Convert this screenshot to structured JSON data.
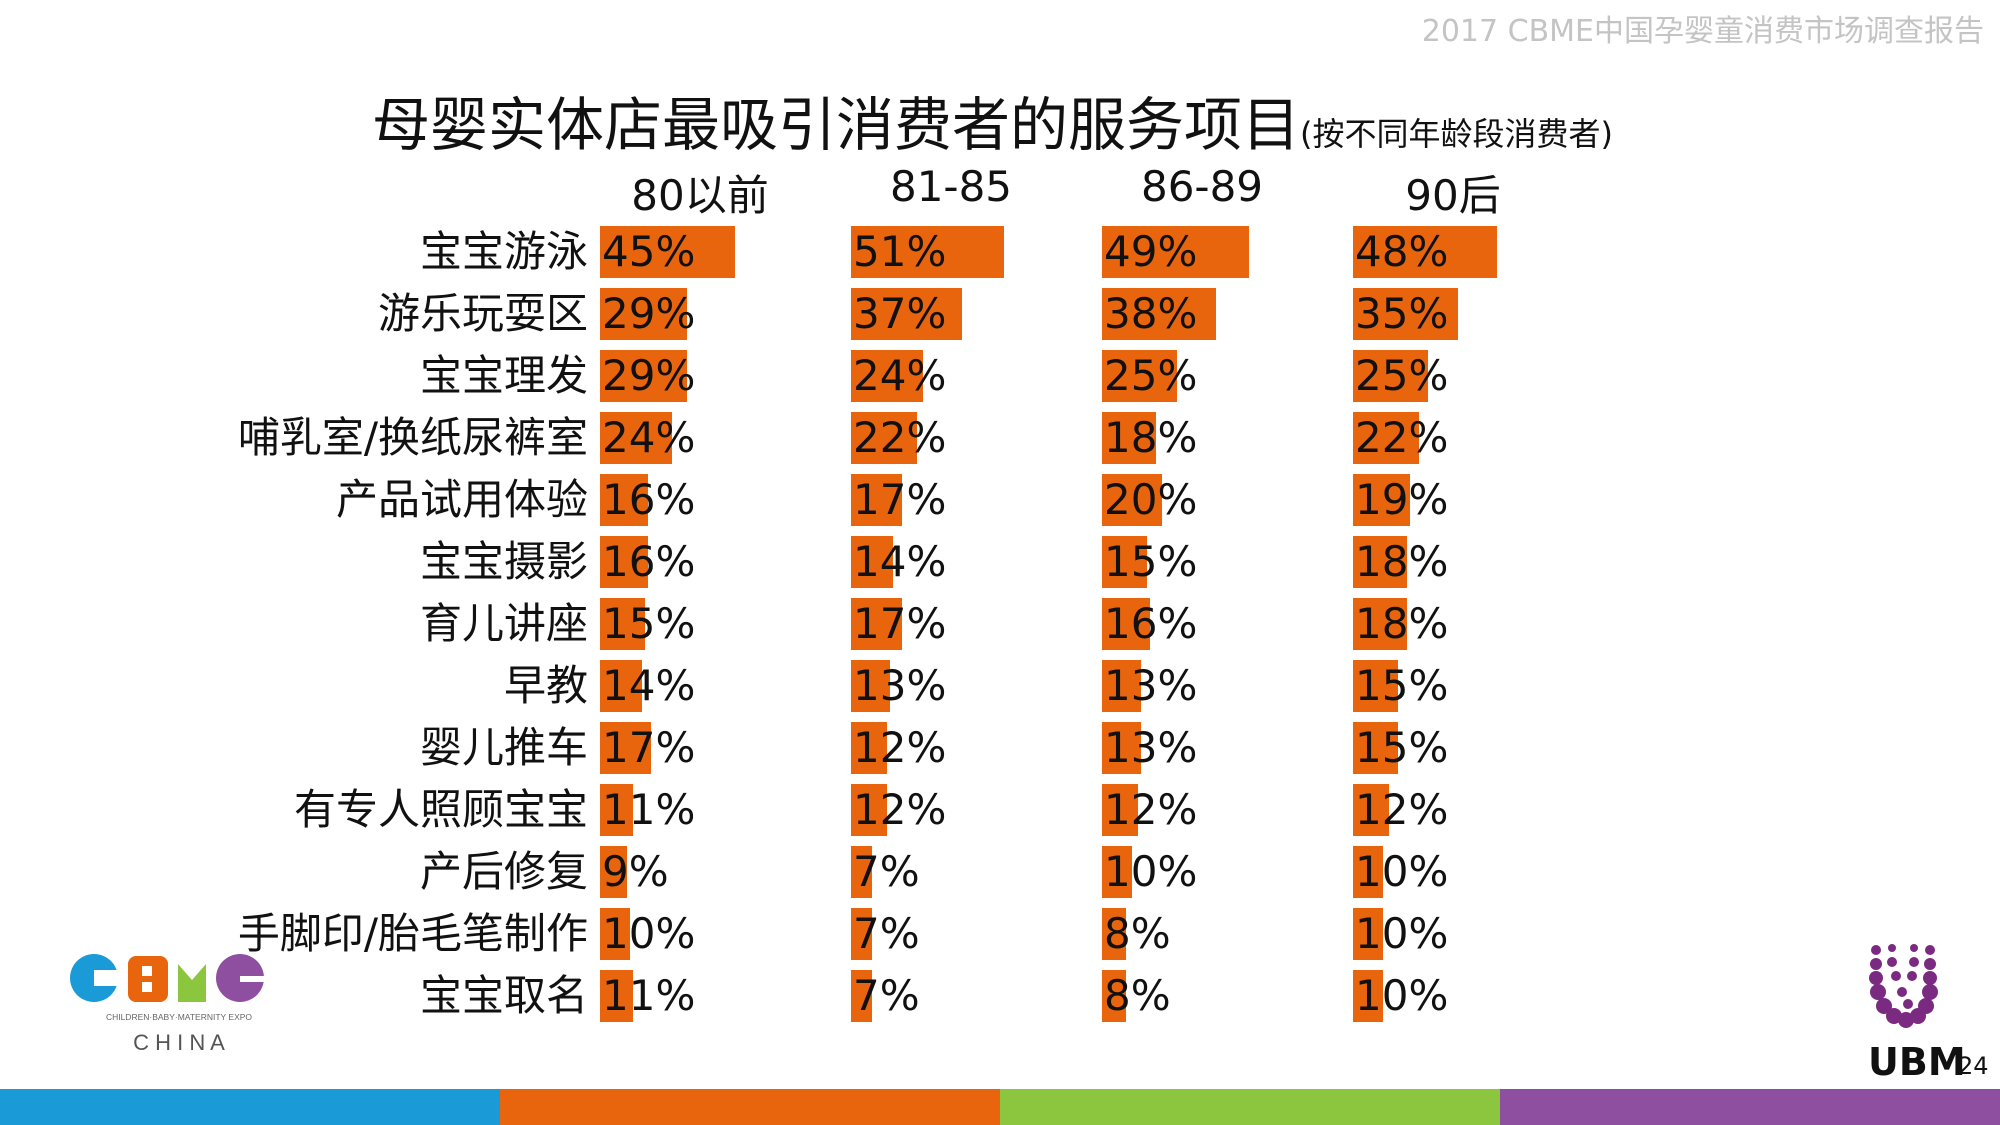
{
  "header_note": "2017 CBME中国孕婴童消费市场调查报告",
  "page_number": "24",
  "logos": {
    "cbme_tagline": "CHILDREN·BABY·MATERNITY EXPO",
    "cbme_country": "C H I N A",
    "ubm": "UBM"
  },
  "colors": {
    "bar": "#e8650e",
    "footer": [
      "#1a9ad6",
      "#e8650e",
      "#8cc63f",
      "#8e4fa0"
    ]
  },
  "chart_data": {
    "type": "bar",
    "orientation": "horizontal",
    "title": "母婴实体店最吸引消费者的服务项目",
    "subtitle": "(按不同年龄段消费者)",
    "categories": [
      "宝宝游泳",
      "游乐玩耍区",
      "宝宝理发",
      "哺乳室/换纸尿裤室",
      "产品试用体验",
      "宝宝摄影",
      "育儿讲座",
      "早教",
      "婴儿推车",
      "有专人照顾宝宝",
      "产后修复",
      "手脚印/胎毛笔制作",
      "宝宝取名"
    ],
    "series": [
      {
        "name": "80以前",
        "values": [
          45,
          29,
          29,
          24,
          16,
          16,
          15,
          14,
          17,
          11,
          9,
          10,
          11
        ],
        "labels": [
          "45%",
          "29%",
          "29%",
          "24%",
          "16%",
          "16%",
          "15%",
          "14%",
          "17%",
          "11%",
          "9%",
          "10%",
          "11%"
        ]
      },
      {
        "name": "81-85",
        "values": [
          51,
          37,
          24,
          22,
          17,
          14,
          17,
          13,
          12,
          12,
          7,
          7,
          7
        ],
        "labels": [
          "51%",
          "37%",
          "24%",
          "22%",
          "17%",
          "14%",
          "17%",
          "13%",
          "12%",
          "12%",
          "7%",
          "7%",
          "7%"
        ]
      },
      {
        "name": "86-89",
        "values": [
          49,
          38,
          25,
          18,
          20,
          15,
          16,
          13,
          13,
          12,
          10,
          8,
          8
        ],
        "labels": [
          "49%",
          "38%",
          "25%",
          "18%",
          "20%",
          "15%",
          "16%",
          "13%",
          "13%",
          "12%",
          "10%",
          "8%",
          "8%"
        ]
      },
      {
        "name": "90后",
        "values": [
          48,
          35,
          25,
          22,
          19,
          18,
          18,
          15,
          15,
          12,
          10,
          10,
          10
        ],
        "labels": [
          "48%",
          "35%",
          "25%",
          "22%",
          "19%",
          "18%",
          "18%",
          "15%",
          "15%",
          "12%",
          "10%",
          "10%",
          "10%"
        ]
      }
    ],
    "unit": "%",
    "grid": false,
    "legend": "none"
  }
}
